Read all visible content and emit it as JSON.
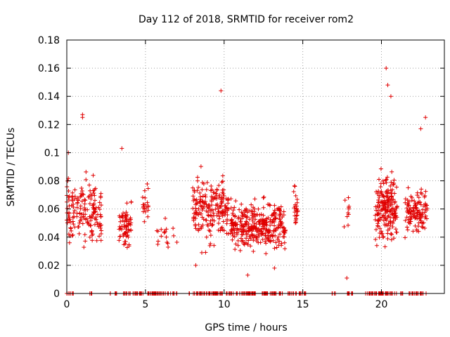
{
  "chart_data": {
    "type": "scatter",
    "title": "Day 112 of 2018, SRMTID for receiver rom2",
    "xlabel": "GPS time / hours",
    "ylabel": "SRMTID / TECUs",
    "xlim": [
      0,
      24
    ],
    "ylim": [
      0,
      0.18
    ],
    "x_ticks": [
      0,
      5,
      10,
      15,
      20
    ],
    "y_ticks": [
      0,
      0.02,
      0.04,
      0.06,
      0.08,
      0.1,
      0.12,
      0.14,
      0.16,
      0.18
    ],
    "y_tick_labels": [
      "0",
      "0.02",
      "0.04",
      "0.06",
      "0.08",
      "0.1",
      "0.12",
      "0.14",
      "0.16",
      "0.18"
    ],
    "grid": true,
    "marker": "+",
    "color": "#e00000",
    "clusters": [
      {
        "x_range": [
          0.0,
          2.2
        ],
        "y_mean": 0.058,
        "y_spread": 0.02,
        "count": 170
      },
      {
        "x_range": [
          3.3,
          4.1
        ],
        "y_mean": 0.048,
        "y_spread": 0.016,
        "count": 70
      },
      {
        "x_range": [
          4.8,
          5.2
        ],
        "y_mean": 0.065,
        "y_spread": 0.015,
        "count": 20
      },
      {
        "x_range": [
          5.6,
          7.0
        ],
        "y_mean": 0.042,
        "y_spread": 0.01,
        "count": 18
      },
      {
        "x_range": [
          8.0,
          10.3
        ],
        "y_mean": 0.06,
        "y_spread": 0.022,
        "count": 200
      },
      {
        "x_range": [
          10.4,
          13.9
        ],
        "y_mean": 0.048,
        "y_spread": 0.015,
        "count": 340
      },
      {
        "x_range": [
          14.4,
          14.7
        ],
        "y_mean": 0.06,
        "y_spread": 0.02,
        "count": 25
      },
      {
        "x_range": [
          17.6,
          18.0
        ],
        "y_mean": 0.055,
        "y_spread": 0.015,
        "count": 10
      },
      {
        "x_range": [
          19.6,
          21.0
        ],
        "y_mean": 0.06,
        "y_spread": 0.022,
        "count": 190
      },
      {
        "x_range": [
          21.5,
          22.9
        ],
        "y_mean": 0.058,
        "y_spread": 0.015,
        "count": 120
      }
    ],
    "outliers": [
      {
        "x": 9.8,
        "y": 0.144
      },
      {
        "x": 20.3,
        "y": 0.16
      },
      {
        "x": 20.4,
        "y": 0.148
      },
      {
        "x": 20.6,
        "y": 0.14
      },
      {
        "x": 1.0,
        "y": 0.127
      },
      {
        "x": 1.0,
        "y": 0.125
      },
      {
        "x": 22.8,
        "y": 0.125
      },
      {
        "x": 17.8,
        "y": 0.011
      },
      {
        "x": 11.5,
        "y": 0.013
      },
      {
        "x": 3.5,
        "y": 0.103
      },
      {
        "x": 0.1,
        "y": 0.1
      },
      {
        "x": 22.5,
        "y": 0.117
      },
      {
        "x": 13.2,
        "y": 0.018
      },
      {
        "x": 8.2,
        "y": 0.02
      }
    ],
    "zero_band_x_ranges": [
      [
        0.0,
        0.5
      ],
      [
        1.4,
        1.6
      ],
      [
        2.7,
        2.8
      ],
      [
        3.0,
        3.3
      ],
      [
        3.6,
        4.5
      ],
      [
        4.4,
        7.2
      ],
      [
        7.7,
        11.9
      ],
      [
        11.4,
        12.8
      ],
      [
        12.5,
        15.2
      ],
      [
        16.8,
        17.1
      ],
      [
        17.6,
        18.2
      ],
      [
        18.9,
        21.5
      ],
      [
        21.7,
        22.6
      ],
      [
        22.5,
        22.9
      ]
    ]
  }
}
